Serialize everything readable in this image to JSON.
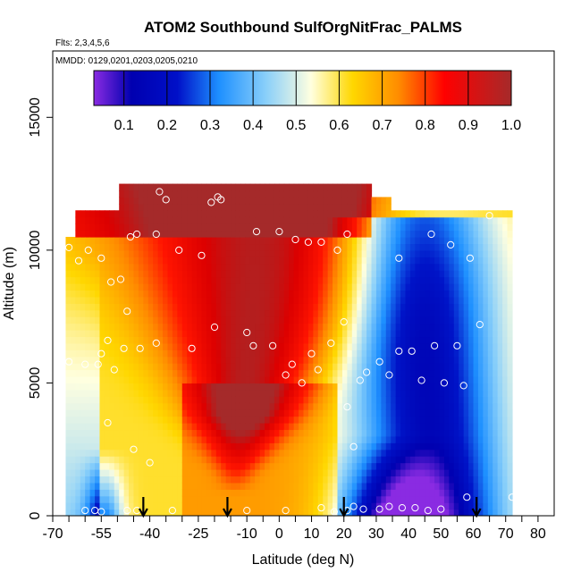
{
  "chart_data": {
    "type": "heatmap",
    "title": "ATOM2 Southbound SulfOrgNitFrac_PALMS",
    "flights_note": "Flts: 2,3,4,5,6",
    "dates_note": "MMDD: 0129,0201,0203,0205,0210",
    "xlabel": "Latitude (deg N)",
    "ylabel": "Altitude (m)",
    "xlim": [
      -70,
      85
    ],
    "ylim": [
      0,
      17500
    ],
    "x_ticks": [
      -70,
      -55,
      -40,
      -25,
      -10,
      0,
      10,
      20,
      30,
      40,
      50,
      60,
      70,
      80
    ],
    "x_tick_labels": [
      "-70",
      "-55",
      "-40",
      "-25",
      "-10",
      "0",
      "10",
      "20",
      "30",
      "40",
      "50",
      "60",
      "70",
      "80"
    ],
    "y_ticks": [
      0,
      5000,
      10000,
      15000
    ],
    "y_tick_labels": [
      "0",
      "5000",
      "10000",
      "15000"
    ],
    "colorbar": {
      "range": [
        0.03,
        1.0
      ],
      "ticks": [
        0.1,
        0.2,
        0.3,
        0.4,
        0.5,
        0.6,
        0.7,
        0.8,
        0.9,
        1.0
      ],
      "tick_labels": [
        "0.1",
        "0.2",
        "0.3",
        "0.4",
        "0.5",
        "0.6",
        "0.7",
        "0.8",
        "0.9",
        "1.0"
      ],
      "colors": [
        "#8a2be2",
        "#0000b0",
        "#1e90ff",
        "#87cefa",
        "#ffffe0",
        "#ffd700",
        "#ff8c00",
        "#ff0000",
        "#b22222"
      ]
    },
    "field_description": "fraction field interpolated over latitude and altitude; high values (red) in upper troposphere between about -40 and 15 deg N, low values (blue) in tropics 20-70 deg N and near surface at 35-50 deg N",
    "field_lat_range": [
      -66,
      72
    ],
    "field_alt_range": [
      0,
      12500
    ],
    "samples": [
      {
        "lat": -37,
        "alt": 12200
      },
      {
        "lat": -35,
        "alt": 11900
      },
      {
        "lat": -21,
        "alt": 11800
      },
      {
        "lat": -19,
        "alt": 12000
      },
      {
        "lat": -18,
        "alt": 11900
      },
      {
        "lat": -7,
        "alt": 10700
      },
      {
        "lat": 0,
        "alt": 10700
      },
      {
        "lat": 5,
        "alt": 10400
      },
      {
        "lat": 9,
        "alt": 10300
      },
      {
        "lat": 13,
        "alt": 10300
      },
      {
        "lat": 18,
        "alt": 10000
      },
      {
        "lat": 21,
        "alt": 10600
      },
      {
        "lat": 37,
        "alt": 9700
      },
      {
        "lat": 47,
        "alt": 10600
      },
      {
        "lat": 53,
        "alt": 10200
      },
      {
        "lat": 59,
        "alt": 9700
      },
      {
        "lat": 65,
        "alt": 11300
      },
      {
        "lat": -46,
        "alt": 10500
      },
      {
        "lat": -44,
        "alt": 10600
      },
      {
        "lat": -38,
        "alt": 10600
      },
      {
        "lat": -31,
        "alt": 10000
      },
      {
        "lat": -24,
        "alt": 9800
      },
      {
        "lat": -59,
        "alt": 10000
      },
      {
        "lat": -62,
        "alt": 9600
      },
      {
        "lat": -55,
        "alt": 9700
      },
      {
        "lat": -65,
        "alt": 10100
      },
      {
        "lat": -52,
        "alt": 8800
      },
      {
        "lat": -49,
        "alt": 8900
      },
      {
        "lat": -47,
        "alt": 7700
      },
      {
        "lat": -53,
        "alt": 6600
      },
      {
        "lat": -48,
        "alt": 6300
      },
      {
        "lat": -55,
        "alt": 6100
      },
      {
        "lat": -43,
        "alt": 6300
      },
      {
        "lat": -38,
        "alt": 6500
      },
      {
        "lat": -27,
        "alt": 6300
      },
      {
        "lat": -20,
        "alt": 7100
      },
      {
        "lat": -10,
        "alt": 6900
      },
      {
        "lat": -8,
        "alt": 6400
      },
      {
        "lat": -2,
        "alt": 6400
      },
      {
        "lat": 4,
        "alt": 5700
      },
      {
        "lat": 7,
        "alt": 5000
      },
      {
        "lat": 2,
        "alt": 5300
      },
      {
        "lat": 10,
        "alt": 6100
      },
      {
        "lat": 12,
        "alt": 5500
      },
      {
        "lat": 16,
        "alt": 6500
      },
      {
        "lat": 20,
        "alt": 7300
      },
      {
        "lat": 25,
        "alt": 5100
      },
      {
        "lat": 27,
        "alt": 5400
      },
      {
        "lat": 31,
        "alt": 5800
      },
      {
        "lat": 34,
        "alt": 5300
      },
      {
        "lat": 37,
        "alt": 6200
      },
      {
        "lat": 41,
        "alt": 6200
      },
      {
        "lat": 44,
        "alt": 5100
      },
      {
        "lat": 48,
        "alt": 6400
      },
      {
        "lat": 51,
        "alt": 5000
      },
      {
        "lat": 55,
        "alt": 6400
      },
      {
        "lat": 57,
        "alt": 4900
      },
      {
        "lat": 62,
        "alt": 7200
      },
      {
        "lat": -65,
        "alt": 5800
      },
      {
        "lat": -60,
        "alt": 5700
      },
      {
        "lat": -56,
        "alt": 5700
      },
      {
        "lat": -51,
        "alt": 5500
      },
      {
        "lat": -68,
        "alt": 5200
      },
      {
        "lat": -53,
        "alt": 3500
      },
      {
        "lat": -45,
        "alt": 2500
      },
      {
        "lat": -40,
        "alt": 2000
      },
      {
        "lat": 21,
        "alt": 4100
      },
      {
        "lat": 23,
        "alt": 2600
      },
      {
        "lat": -60,
        "alt": 200
      },
      {
        "lat": -57,
        "alt": 200
      },
      {
        "lat": -55,
        "alt": 150
      },
      {
        "lat": -47,
        "alt": 200
      },
      {
        "lat": -44,
        "alt": 200
      },
      {
        "lat": -33,
        "alt": 200
      },
      {
        "lat": -10,
        "alt": 200
      },
      {
        "lat": 2,
        "alt": 200
      },
      {
        "lat": 13,
        "alt": 300
      },
      {
        "lat": 17,
        "alt": 150
      },
      {
        "lat": 21,
        "alt": 200
      },
      {
        "lat": 23,
        "alt": 350
      },
      {
        "lat": 26,
        "alt": 250
      },
      {
        "lat": 31,
        "alt": 250
      },
      {
        "lat": 34,
        "alt": 350
      },
      {
        "lat": 38,
        "alt": 300
      },
      {
        "lat": 42,
        "alt": 300
      },
      {
        "lat": 46,
        "alt": 200
      },
      {
        "lat": 50,
        "alt": 250
      },
      {
        "lat": 58,
        "alt": 700
      },
      {
        "lat": 72,
        "alt": 700
      }
    ],
    "marker_latitudes": [
      -42,
      -16,
      20,
      61
    ]
  }
}
